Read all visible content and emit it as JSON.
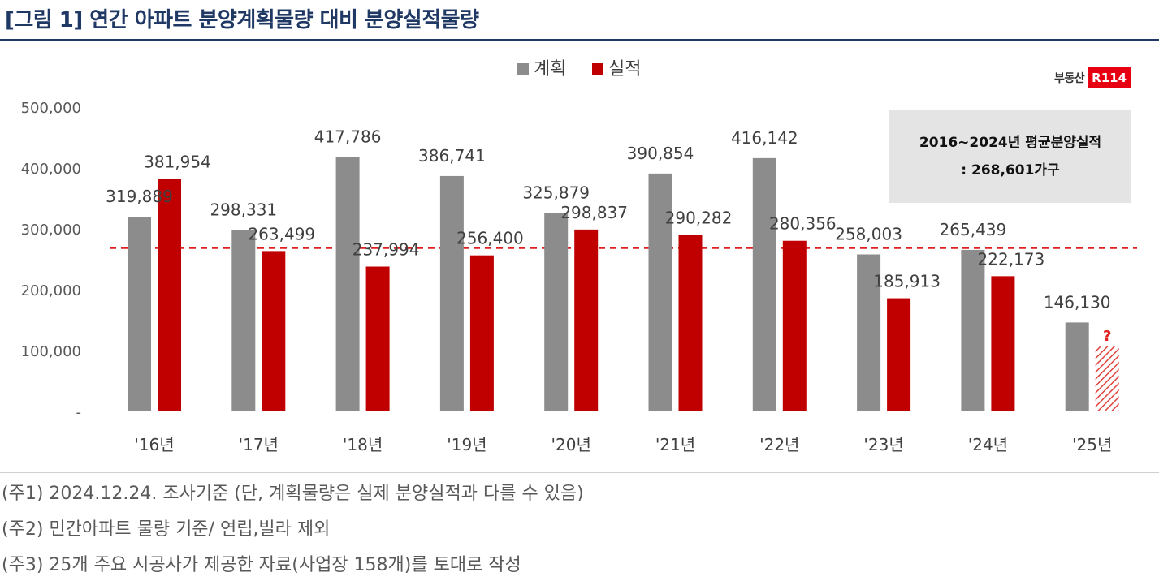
{
  "title": "[그림 1] 연간 아파트 분양계획물량 대비 분양실적물량",
  "brand": {
    "text": "부동산",
    "logo": "R114"
  },
  "average_box": {
    "line1": "2016~2024년 평균분양실적",
    "line2": ": 268,601가구"
  },
  "notes": [
    "(주1) 2024.12.24. 조사기준 (단, 계획물량은 실제 분양실적과 다를 수 있음)",
    "(주2) 민간아파트 물량 기준/ 연립,빌라 제외",
    "(주3) 25개 주요 시공사가 제공한 자료(사업장 158개)를 토대로 작성"
  ],
  "colors": {
    "plan": "#8c8c8c",
    "actual": "#c00000",
    "average_line": "#e02020",
    "title": "#1f3864"
  },
  "chart_data": {
    "type": "bar",
    "categories": [
      "'16년",
      "'17년",
      "'18년",
      "'19년",
      "'20년",
      "'21년",
      "'22년",
      "'23년",
      "'24년",
      "'25년"
    ],
    "series": [
      {
        "name": "계획",
        "values": [
          319889,
          298331,
          417786,
          386741,
          325879,
          390854,
          416142,
          258003,
          265439,
          146130
        ]
      },
      {
        "name": "실적",
        "values": [
          381954,
          263499,
          237994,
          256400,
          298837,
          290282,
          280356,
          185913,
          222173,
          null
        ]
      }
    ],
    "value_labels": {
      "plan": [
        "319,889",
        "298,331",
        "417,786",
        "386,741",
        "325,879",
        "390,854",
        "416,142",
        "258,003",
        "265,439",
        "146,130"
      ],
      "actual": [
        "381,954",
        "263,499",
        "237,994",
        "256,400",
        "298,837",
        "290,282",
        "280,356",
        "185,913",
        "222,173",
        "?"
      ]
    },
    "y_ticks": [
      0,
      100000,
      200000,
      300000,
      400000,
      500000
    ],
    "y_tick_labels": [
      "-",
      "100,000",
      "200,000",
      "300,000",
      "400,000",
      "500,000"
    ],
    "ylim": [
      0,
      500000
    ],
    "average_line": 268601,
    "legend_position": "top-center",
    "grid": false
  }
}
